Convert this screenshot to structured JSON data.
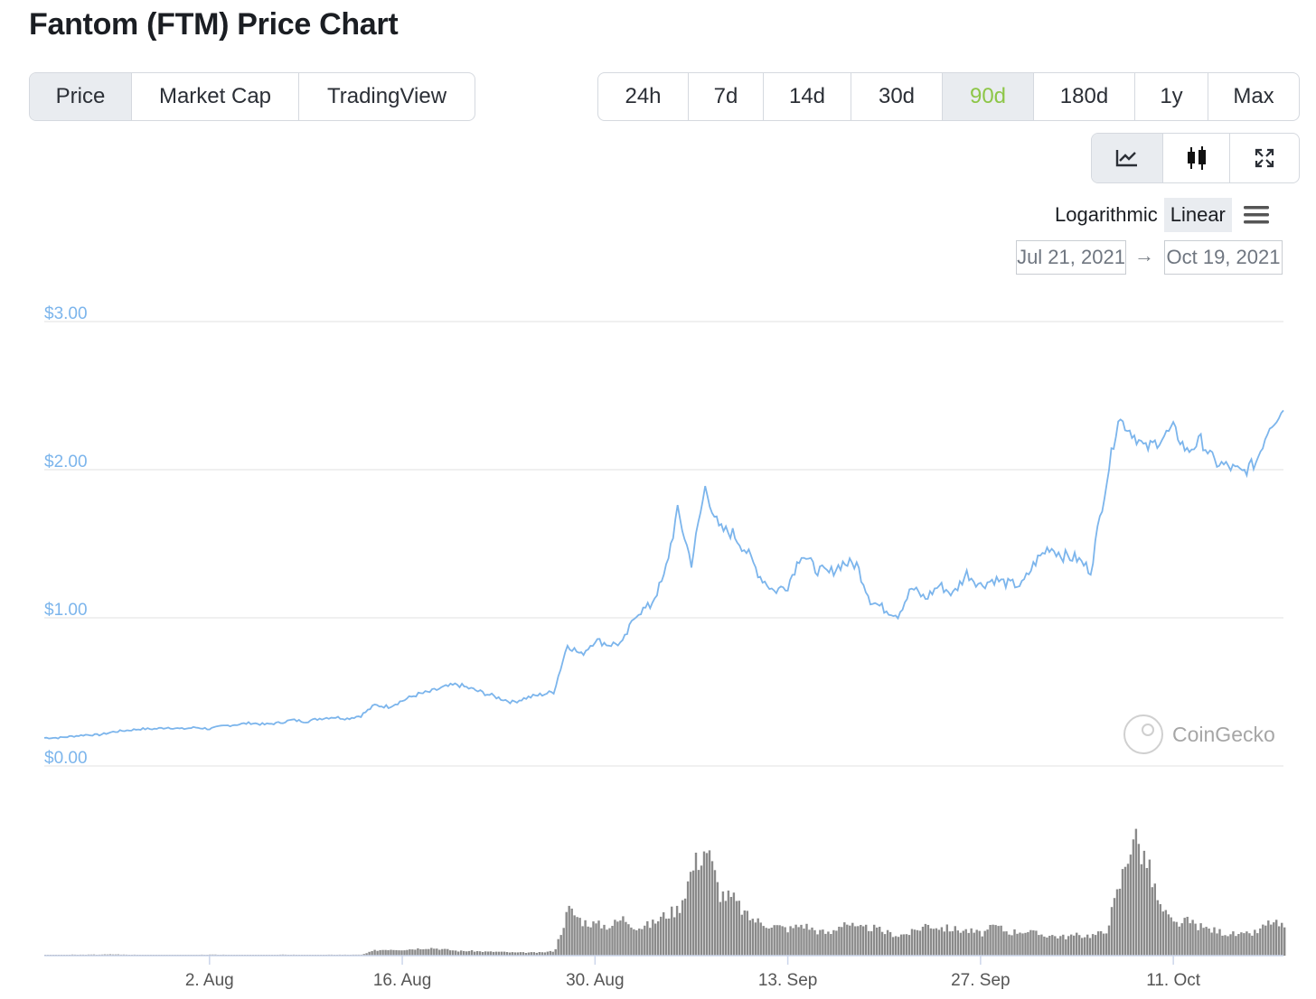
{
  "title": "Fantom (FTM) Price Chart",
  "view_tabs": [
    {
      "label": "Price",
      "active": true
    },
    {
      "label": "Market Cap",
      "active": false
    },
    {
      "label": "TradingView",
      "active": false
    }
  ],
  "range_tabs": [
    {
      "label": "24h",
      "active": false
    },
    {
      "label": "7d",
      "active": false
    },
    {
      "label": "14d",
      "active": false
    },
    {
      "label": "30d",
      "active": false
    },
    {
      "label": "90d",
      "active": true
    },
    {
      "label": "180d",
      "active": false
    },
    {
      "label": "1y",
      "active": false
    },
    {
      "label": "Max",
      "active": false
    }
  ],
  "tools": [
    {
      "icon": "line-chart-icon",
      "active": true
    },
    {
      "icon": "candlestick-icon",
      "active": false
    },
    {
      "icon": "fullscreen-icon",
      "active": false
    }
  ],
  "scale": {
    "logarithmic": "Logarithmic",
    "linear": "Linear",
    "selected": "Linear"
  },
  "date_range": {
    "from": "Jul 21, 2021",
    "to": "Oct 19, 2021",
    "arrow": "→"
  },
  "watermark": "CoinGecko",
  "colors": {
    "price_line": "#7cb5ec",
    "volume": "#8a8a8a",
    "accent_green": "#8dc647",
    "grid": "#e6e6e6"
  },
  "chart_data": {
    "type": "line",
    "y_ticks": [
      "$0.00",
      "$1.00",
      "$2.00",
      "$3.00"
    ],
    "ylim": [
      0,
      3
    ],
    "x_ticks": [
      "2. Aug",
      "16. Aug",
      "30. Aug",
      "13. Sep",
      "27. Sep",
      "11. Oct"
    ],
    "grid": true,
    "series": [
      {
        "values_day_index": [
          0,
          1,
          2,
          3,
          4,
          5,
          6,
          7,
          8,
          9,
          10,
          11,
          12,
          13,
          14,
          15,
          16,
          17,
          18,
          19,
          20,
          21,
          22,
          23,
          24,
          25,
          26,
          27,
          28,
          29,
          30,
          31,
          32,
          33,
          34,
          35,
          36,
          37,
          38,
          39,
          40,
          41,
          42,
          43,
          44,
          45,
          46,
          47,
          48,
          49,
          50,
          51,
          52,
          53,
          54,
          55,
          56,
          57,
          58,
          59,
          60,
          61,
          62,
          63,
          64,
          65,
          66,
          67,
          68,
          69,
          70,
          71,
          72,
          73,
          74,
          75,
          76,
          77,
          78,
          79,
          80,
          81,
          82,
          83,
          84,
          85,
          86,
          87,
          88,
          89,
          90
        ],
        "values": [
          0.19,
          0.19,
          0.2,
          0.21,
          0.21,
          0.23,
          0.24,
          0.25,
          0.25,
          0.26,
          0.25,
          0.26,
          0.25,
          0.27,
          0.28,
          0.29,
          0.28,
          0.29,
          0.31,
          0.3,
          0.32,
          0.33,
          0.32,
          0.34,
          0.41,
          0.4,
          0.44,
          0.48,
          0.5,
          0.53,
          0.55,
          0.52,
          0.49,
          0.46,
          0.43,
          0.46,
          0.48,
          0.5,
          0.82,
          0.75,
          0.85,
          0.82,
          0.83,
          1.03,
          1.08,
          1.27,
          1.72,
          1.37,
          1.88,
          1.6,
          1.57,
          1.45,
          1.28,
          1.18,
          1.22,
          1.44,
          1.33,
          1.3,
          1.37,
          1.36,
          1.12,
          1.06,
          1.02,
          1.2,
          1.13,
          1.22,
          1.16,
          1.3,
          1.22,
          1.26,
          1.23,
          1.22,
          1.38,
          1.48,
          1.42,
          1.4,
          1.32,
          1.85,
          2.35,
          2.25,
          2.14,
          2.2,
          2.28,
          2.12,
          2.2,
          2.05,
          2.02,
          1.98,
          2.05,
          2.3,
          2.4
        ]
      }
    ],
    "volume": [
      0.5,
      0.5,
      0.6,
      0.6,
      0.7,
      0.8,
      0.6,
      0.6,
      0.5,
      0.5,
      0.5,
      0.5,
      0.6,
      0.6,
      0.5,
      0.5,
      0.5,
      0.6,
      0.6,
      0.5,
      0.5,
      0.6,
      0.6,
      0.6,
      3.5,
      4,
      3.8,
      4.5,
      5,
      4,
      3,
      3,
      2.5,
      2.5,
      2,
      2,
      2,
      3,
      30,
      22,
      20,
      19,
      24,
      18,
      20,
      26,
      30,
      56,
      70,
      40,
      36,
      25,
      21,
      19,
      17,
      20,
      16,
      14,
      22,
      17,
      18,
      15,
      13,
      15,
      20,
      18,
      17,
      16,
      14,
      19,
      15,
      16,
      14,
      13,
      12,
      13,
      13,
      15,
      44,
      78,
      60,
      30,
      20,
      22,
      18,
      16,
      14,
      13,
      15,
      22,
      18
    ]
  }
}
